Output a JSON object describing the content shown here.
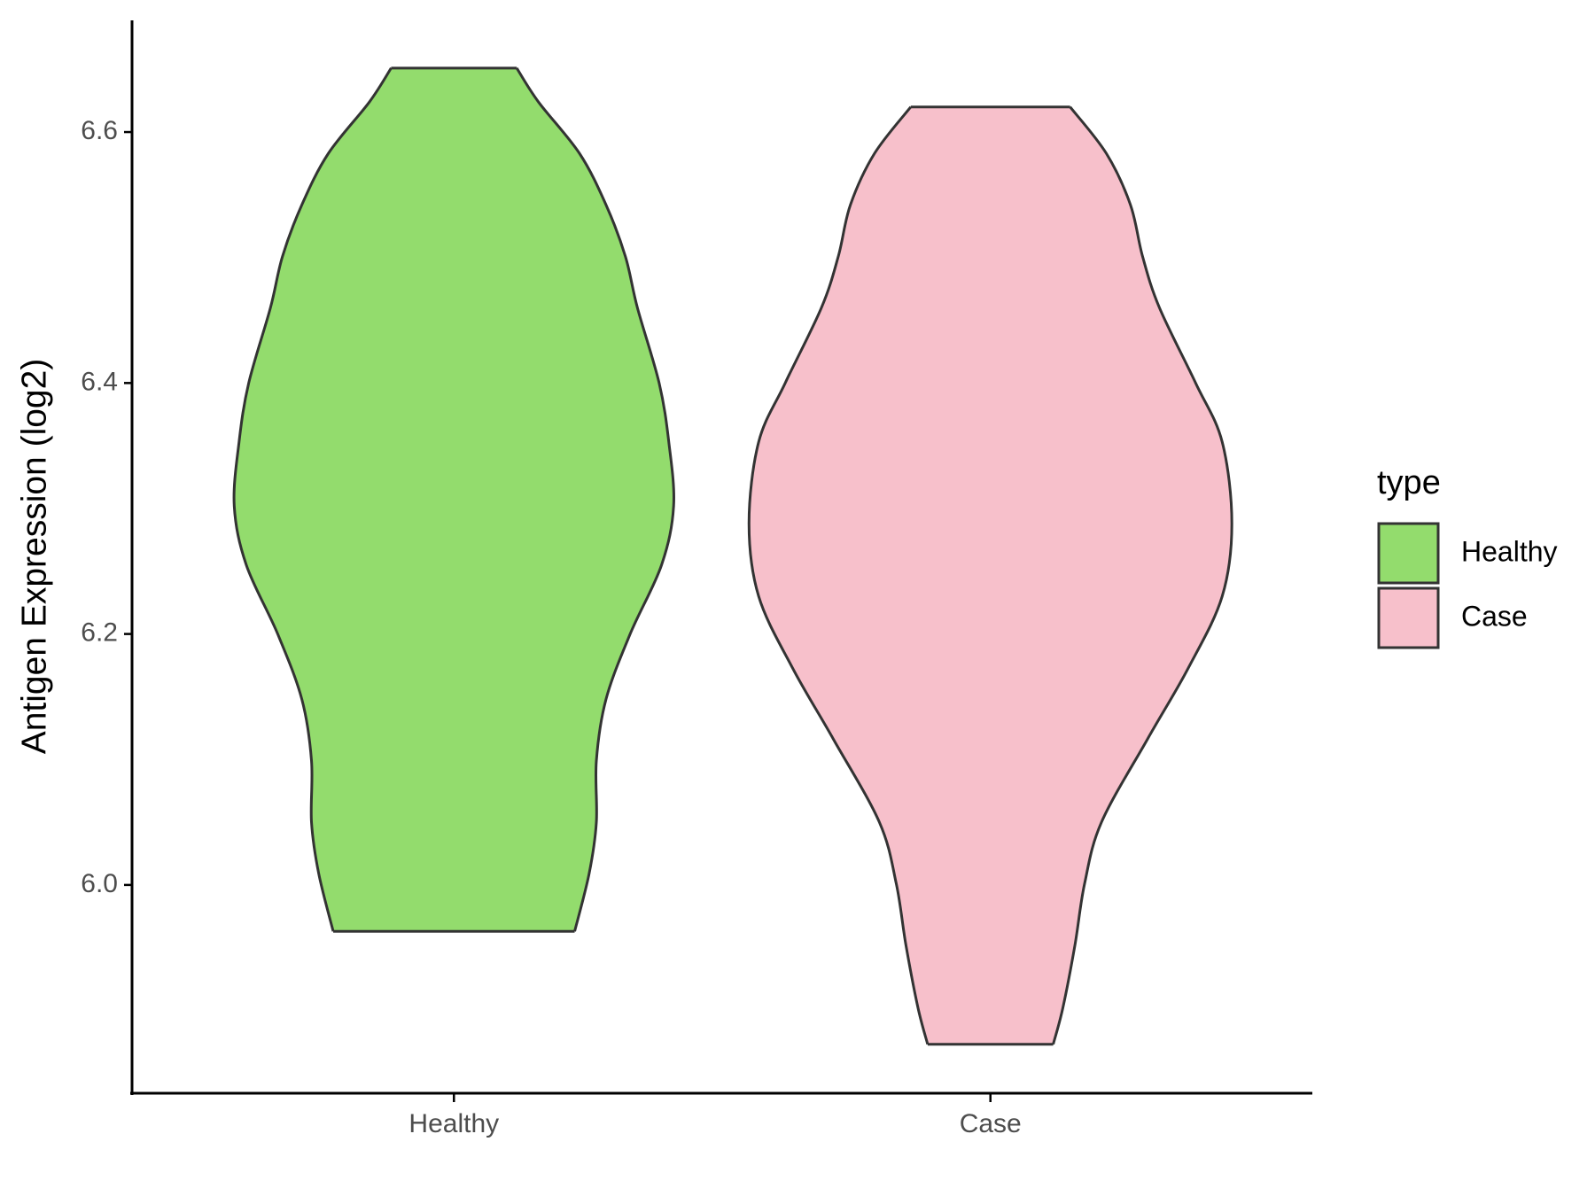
{
  "chart_data": {
    "type": "violin",
    "y_label": "Antigen Expression (log2)",
    "categories": [
      "Healthy",
      "Case"
    ],
    "ylim": [
      5.834,
      6.689
    ],
    "yticks": [
      {
        "value": 6.0,
        "label": "6.0"
      },
      {
        "value": 6.2,
        "label": "6.2"
      },
      {
        "value": 6.4,
        "label": "6.4"
      },
      {
        "value": 6.6,
        "label": "6.6"
      }
    ],
    "legend_title": "type",
    "legend_position": "right",
    "series": [
      {
        "name": "Healthy",
        "color": "#93dc6d",
        "y": [
          6.651,
          6.624,
          6.583,
          6.542,
          6.501,
          6.46,
          6.4,
          6.353,
          6.302,
          6.255,
          6.2,
          6.148,
          6.099,
          6.05,
          6.009,
          5.963
        ],
        "density": [
          0.26,
          0.35,
          0.52,
          0.63,
          0.71,
          0.76,
          0.85,
          0.89,
          0.91,
          0.86,
          0.73,
          0.63,
          0.59,
          0.59,
          0.56,
          0.5
        ]
      },
      {
        "name": "Case",
        "color": "#f7c0cb",
        "y": [
          6.62,
          6.583,
          6.542,
          6.501,
          6.46,
          6.4,
          6.353,
          6.288,
          6.23,
          6.173,
          6.116,
          6.05,
          6.001,
          5.952,
          5.902,
          5.873
        ],
        "density": [
          0.33,
          0.48,
          0.58,
          0.63,
          0.7,
          0.85,
          0.96,
          1,
          0.96,
          0.82,
          0.65,
          0.46,
          0.39,
          0.35,
          0.3,
          0.26
        ]
      }
    ]
  }
}
